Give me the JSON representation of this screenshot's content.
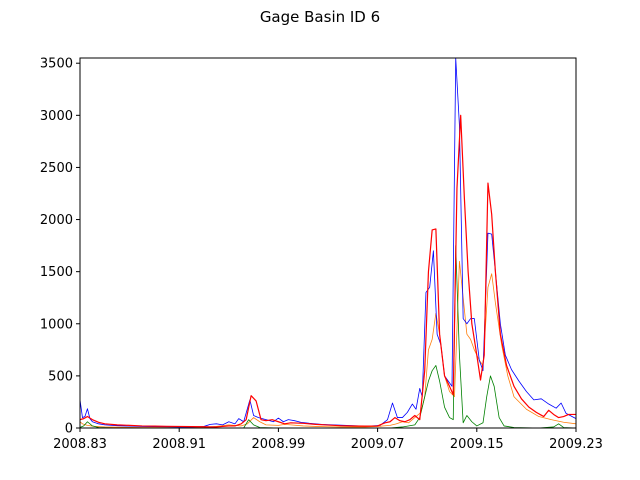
{
  "chart_data": {
    "type": "line",
    "title": "Gage Basin ID 6",
    "xlabel": "",
    "ylabel": "",
    "xlim": [
      2008.83,
      2009.23
    ],
    "ylim": [
      0,
      3550
    ],
    "xticks": [
      2008.83,
      2008.91,
      2008.99,
      2009.07,
      2009.15,
      2009.23
    ],
    "xtick_labels": [
      "2008.83",
      "2008.91",
      "2008.99",
      "2009.07",
      "2009.15",
      "2009.23"
    ],
    "yticks": [
      0,
      500,
      1000,
      1500,
      2000,
      2500,
      3000,
      3500
    ],
    "ytick_labels": [
      "0",
      "500",
      "1000",
      "1500",
      "2000",
      "2500",
      "3000",
      "3500"
    ],
    "grid": false,
    "legend": "none",
    "series": [
      {
        "color": "#ff7f0e",
        "width": 0.8,
        "points": [
          [
            2008.83,
            60
          ],
          [
            2008.832,
            40
          ],
          [
            2008.836,
            25
          ],
          [
            2008.842,
            15
          ],
          [
            2008.85,
            10
          ],
          [
            2008.86,
            8
          ],
          [
            2008.87,
            6
          ],
          [
            2008.88,
            5
          ],
          [
            2008.89,
            5
          ],
          [
            2008.9,
            5
          ],
          [
            2008.91,
            4
          ],
          [
            2008.92,
            4
          ],
          [
            2008.93,
            6
          ],
          [
            2008.94,
            15
          ],
          [
            2008.95,
            30
          ],
          [
            2008.955,
            25
          ],
          [
            2008.96,
            20
          ],
          [
            2008.965,
            40
          ],
          [
            2008.97,
            100
          ],
          [
            2008.975,
            60
          ],
          [
            2008.98,
            30
          ],
          [
            2008.99,
            25
          ],
          [
            2008.995,
            35
          ],
          [
            2009.0,
            30
          ],
          [
            2009.01,
            20
          ],
          [
            2009.02,
            15
          ],
          [
            2009.03,
            12
          ],
          [
            2009.04,
            10
          ],
          [
            2009.05,
            10
          ],
          [
            2009.06,
            10
          ],
          [
            2009.07,
            15
          ],
          [
            2009.08,
            25
          ],
          [
            2009.085,
            40
          ],
          [
            2009.09,
            60
          ],
          [
            2009.095,
            50
          ],
          [
            2009.1,
            100
          ],
          [
            2009.105,
            150
          ],
          [
            2009.108,
            300
          ],
          [
            2009.111,
            750
          ],
          [
            2009.114,
            850
          ],
          [
            2009.117,
            1100
          ],
          [
            2009.12,
            900
          ],
          [
            2009.124,
            500
          ],
          [
            2009.128,
            350
          ],
          [
            2009.132,
            300
          ],
          [
            2009.136,
            1600
          ],
          [
            2009.139,
            1250
          ],
          [
            2009.142,
            900
          ],
          [
            2009.145,
            850
          ],
          [
            2009.148,
            750
          ],
          [
            2009.152,
            650
          ],
          [
            2009.155,
            600
          ],
          [
            2009.159,
            1350
          ],
          [
            2009.162,
            1480
          ],
          [
            2009.165,
            1200
          ],
          [
            2009.17,
            800
          ],
          [
            2009.175,
            500
          ],
          [
            2009.18,
            300
          ],
          [
            2009.19,
            180
          ],
          [
            2009.2,
            110
          ],
          [
            2009.21,
            80
          ],
          [
            2009.22,
            55
          ],
          [
            2009.23,
            40
          ]
        ]
      },
      {
        "color": "#0000ff",
        "width": 0.8,
        "points": [
          [
            2008.83,
            270
          ],
          [
            2008.832,
            100
          ],
          [
            2008.834,
            110
          ],
          [
            2008.836,
            185
          ],
          [
            2008.838,
            90
          ],
          [
            2008.84,
            60
          ],
          [
            2008.845,
            40
          ],
          [
            2008.85,
            30
          ],
          [
            2008.86,
            22
          ],
          [
            2008.87,
            18
          ],
          [
            2008.88,
            15
          ],
          [
            2008.89,
            13
          ],
          [
            2008.9,
            12
          ],
          [
            2008.91,
            10
          ],
          [
            2008.92,
            10
          ],
          [
            2008.925,
            12
          ],
          [
            2008.93,
            15
          ],
          [
            2008.935,
            35
          ],
          [
            2008.94,
            40
          ],
          [
            2008.945,
            30
          ],
          [
            2008.95,
            60
          ],
          [
            2008.955,
            40
          ],
          [
            2008.958,
            90
          ],
          [
            2008.962,
            60
          ],
          [
            2008.967,
            270
          ],
          [
            2008.97,
            120
          ],
          [
            2008.974,
            100
          ],
          [
            2008.98,
            80
          ],
          [
            2008.986,
            60
          ],
          [
            2008.99,
            95
          ],
          [
            2008.994,
            60
          ],
          [
            2008.998,
            80
          ],
          [
            2009.003,
            70
          ],
          [
            2009.008,
            55
          ],
          [
            2009.015,
            45
          ],
          [
            2009.025,
            35
          ],
          [
            2009.035,
            30
          ],
          [
            2009.045,
            25
          ],
          [
            2009.055,
            20
          ],
          [
            2009.065,
            20
          ],
          [
            2009.072,
            25
          ],
          [
            2009.078,
            80
          ],
          [
            2009.082,
            240
          ],
          [
            2009.086,
            100
          ],
          [
            2009.09,
            100
          ],
          [
            2009.094,
            150
          ],
          [
            2009.098,
            230
          ],
          [
            2009.101,
            180
          ],
          [
            2009.104,
            380
          ],
          [
            2009.106,
            300
          ],
          [
            2009.109,
            1300
          ],
          [
            2009.112,
            1350
          ],
          [
            2009.115,
            1700
          ],
          [
            2009.118,
            900
          ],
          [
            2009.121,
            800
          ],
          [
            2009.124,
            500
          ],
          [
            2009.127,
            450
          ],
          [
            2009.13,
            400
          ],
          [
            2009.133,
            3550
          ],
          [
            2009.136,
            2900
          ],
          [
            2009.139,
            1050
          ],
          [
            2009.142,
            1000
          ],
          [
            2009.145,
            1050
          ],
          [
            2009.148,
            1050
          ],
          [
            2009.152,
            650
          ],
          [
            2009.155,
            550
          ],
          [
            2009.159,
            1870
          ],
          [
            2009.162,
            1860
          ],
          [
            2009.165,
            1500
          ],
          [
            2009.169,
            1000
          ],
          [
            2009.173,
            700
          ],
          [
            2009.178,
            560
          ],
          [
            2009.184,
            450
          ],
          [
            2009.19,
            350
          ],
          [
            2009.196,
            270
          ],
          [
            2009.202,
            280
          ],
          [
            2009.208,
            230
          ],
          [
            2009.214,
            190
          ],
          [
            2009.218,
            240
          ],
          [
            2009.222,
            140
          ],
          [
            2009.23,
            90
          ]
        ]
      },
      {
        "color": "#008000",
        "width": 0.8,
        "points": [
          [
            2008.83,
            5
          ],
          [
            2008.833,
            20
          ],
          [
            2008.836,
            60
          ],
          [
            2008.84,
            20
          ],
          [
            2008.845,
            5
          ],
          [
            2008.86,
            0
          ],
          [
            2008.9,
            0
          ],
          [
            2008.95,
            0
          ],
          [
            2008.962,
            0
          ],
          [
            2008.966,
            80
          ],
          [
            2008.97,
            30
          ],
          [
            2008.975,
            5
          ],
          [
            2008.99,
            0
          ],
          [
            2009.05,
            0
          ],
          [
            2009.08,
            0
          ],
          [
            2009.09,
            10
          ],
          [
            2009.1,
            30
          ],
          [
            2009.104,
            100
          ],
          [
            2009.108,
            300
          ],
          [
            2009.111,
            450
          ],
          [
            2009.114,
            550
          ],
          [
            2009.117,
            600
          ],
          [
            2009.12,
            450
          ],
          [
            2009.124,
            200
          ],
          [
            2009.128,
            100
          ],
          [
            2009.131,
            80
          ],
          [
            2009.133,
            1750
          ],
          [
            2009.136,
            700
          ],
          [
            2009.139,
            50
          ],
          [
            2009.142,
            120
          ],
          [
            2009.146,
            60
          ],
          [
            2009.15,
            20
          ],
          [
            2009.155,
            50
          ],
          [
            2009.158,
            300
          ],
          [
            2009.161,
            500
          ],
          [
            2009.164,
            400
          ],
          [
            2009.168,
            100
          ],
          [
            2009.172,
            20
          ],
          [
            2009.18,
            5
          ],
          [
            2009.2,
            0
          ],
          [
            2009.212,
            10
          ],
          [
            2009.216,
            40
          ],
          [
            2009.22,
            5
          ],
          [
            2009.23,
            0
          ]
        ]
      },
      {
        "color": "#ff0000",
        "width": 1.2,
        "points": [
          [
            2008.83,
            80
          ],
          [
            2008.833,
            90
          ],
          [
            2008.836,
            110
          ],
          [
            2008.84,
            80
          ],
          [
            2008.845,
            55
          ],
          [
            2008.85,
            40
          ],
          [
            2008.86,
            30
          ],
          [
            2008.87,
            25
          ],
          [
            2008.88,
            20
          ],
          [
            2008.89,
            18
          ],
          [
            2008.9,
            16
          ],
          [
            2008.91,
            15
          ],
          [
            2008.92,
            13
          ],
          [
            2008.93,
            12
          ],
          [
            2008.94,
            10
          ],
          [
            2008.95,
            20
          ],
          [
            2008.955,
            20
          ],
          [
            2008.96,
            40
          ],
          [
            2008.964,
            80
          ],
          [
            2008.968,
            310
          ],
          [
            2008.972,
            260
          ],
          [
            2008.976,
            80
          ],
          [
            2008.98,
            70
          ],
          [
            2008.985,
            80
          ],
          [
            2008.99,
            60
          ],
          [
            2008.995,
            40
          ],
          [
            2009.0,
            50
          ],
          [
            2009.01,
            45
          ],
          [
            2009.02,
            35
          ],
          [
            2009.03,
            28
          ],
          [
            2009.04,
            22
          ],
          [
            2009.05,
            20
          ],
          [
            2009.06,
            18
          ],
          [
            2009.07,
            20
          ],
          [
            2009.076,
            50
          ],
          [
            2009.08,
            60
          ],
          [
            2009.084,
            100
          ],
          [
            2009.088,
            70
          ],
          [
            2009.092,
            60
          ],
          [
            2009.096,
            80
          ],
          [
            2009.1,
            120
          ],
          [
            2009.104,
            80
          ],
          [
            2009.108,
            550
          ],
          [
            2009.111,
            1500
          ],
          [
            2009.114,
            1900
          ],
          [
            2009.117,
            1910
          ],
          [
            2009.12,
            900
          ],
          [
            2009.124,
            500
          ],
          [
            2009.128,
            400
          ],
          [
            2009.131,
            320
          ],
          [
            2009.134,
            2300
          ],
          [
            2009.137,
            3000
          ],
          [
            2009.14,
            2200
          ],
          [
            2009.143,
            1500
          ],
          [
            2009.146,
            1000
          ],
          [
            2009.15,
            700
          ],
          [
            2009.153,
            460
          ],
          [
            2009.156,
            700
          ],
          [
            2009.159,
            2350
          ],
          [
            2009.162,
            2050
          ],
          [
            2009.165,
            1500
          ],
          [
            2009.169,
            900
          ],
          [
            2009.174,
            600
          ],
          [
            2009.18,
            400
          ],
          [
            2009.186,
            280
          ],
          [
            2009.192,
            200
          ],
          [
            2009.198,
            150
          ],
          [
            2009.204,
            110
          ],
          [
            2009.208,
            170
          ],
          [
            2009.212,
            130
          ],
          [
            2009.216,
            100
          ],
          [
            2009.22,
            110
          ],
          [
            2009.224,
            130
          ],
          [
            2009.23,
            130
          ]
        ]
      }
    ]
  }
}
